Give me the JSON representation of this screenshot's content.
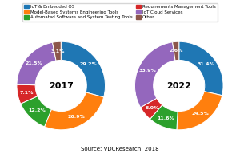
{
  "chart_data": [
    {
      "type": "pie",
      "title": "2017",
      "categories": [
        "IoT & Embedded OS",
        "Model-Based Systems Engineering Tools",
        "Automated Software and System Testing Tools",
        "Requirements Management Tools",
        "IoT Cloud Services",
        "Other"
      ],
      "values": [
        29.2,
        26.9,
        12.2,
        7.1,
        21.5,
        3.1
      ],
      "value_labels": [
        "29.2%",
        "26.9%",
        "12.2%",
        "7.1%",
        "21.5%",
        "3.1%"
      ],
      "data_labels": true,
      "legend": "upper center"
    },
    {
      "type": "pie",
      "title": "2022",
      "categories": [
        "IoT & Embedded OS",
        "Model-Based Systems Engineering Tools",
        "Automated Software and System Testing Tools",
        "Requirements Management Tools",
        "IoT Cloud Services",
        "Other"
      ],
      "values": [
        31.4,
        24.5,
        11.6,
        6.0,
        33.9,
        2.6
      ],
      "value_labels": [
        "31.4%",
        "24.5%",
        "11.6%",
        "6.0%",
        "33.9%",
        "2.6%"
      ],
      "data_labels": true,
      "legend": "upper center"
    }
  ],
  "source": "Source: VDCResearch, 2018"
}
